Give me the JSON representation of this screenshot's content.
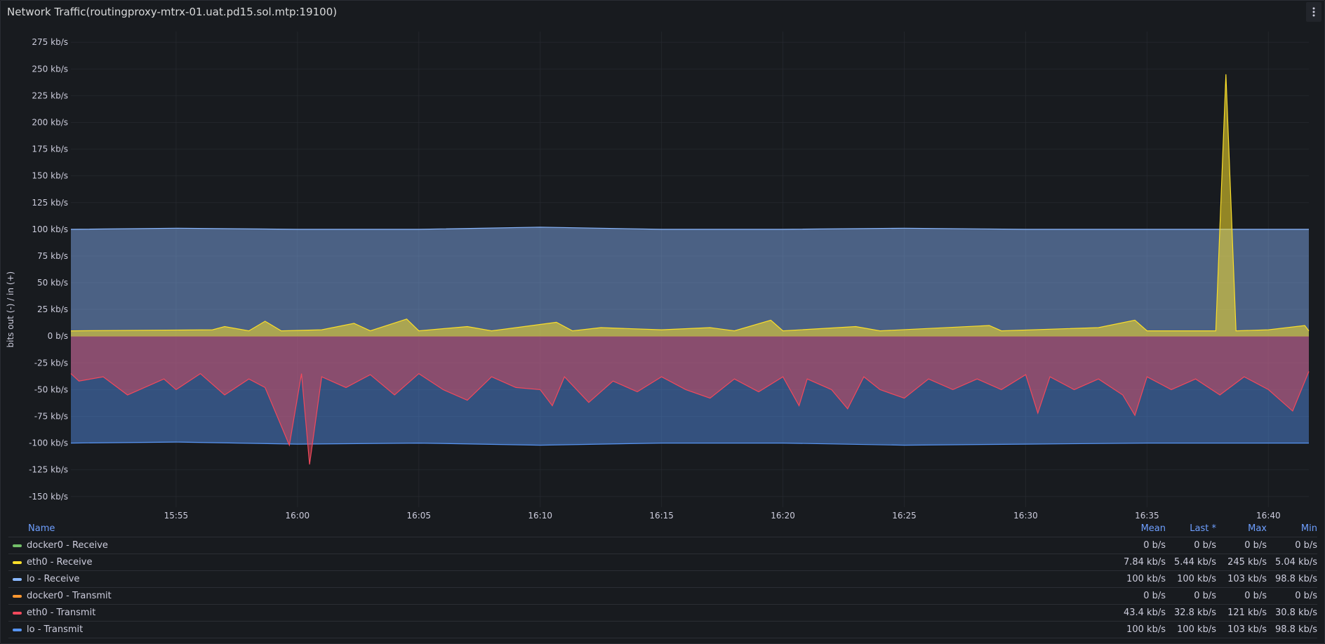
{
  "panel": {
    "title": "Network Traffic(routingproxy-mtrx-01.uat.pd15.sol.mtp:19100)"
  },
  "icons": {
    "menu": "more-vertical-icon"
  },
  "colors": {
    "background": "#181b1f",
    "grid": "#2a2d33",
    "axis_text": "#ccccdc",
    "legend_header": "#6e9fff"
  },
  "legend": {
    "columns": [
      "Name",
      "Mean",
      "Last *",
      "Max",
      "Min"
    ],
    "rows": [
      {
        "name": "docker0 - Receive",
        "color": "#73bf69",
        "mean": "0 b/s",
        "last": "0 b/s",
        "max": "0 b/s",
        "min": "0 b/s"
      },
      {
        "name": "eth0 - Receive",
        "color": "#fade2a",
        "mean": "7.84 kb/s",
        "last": "5.44 kb/s",
        "max": "245 kb/s",
        "min": "5.04 kb/s"
      },
      {
        "name": "lo - Receive",
        "color": "#8ab8ff",
        "mean": "100 kb/s",
        "last": "100 kb/s",
        "max": "103 kb/s",
        "min": "98.8 kb/s"
      },
      {
        "name": "docker0 - Transmit",
        "color": "#ff9830",
        "mean": "0 b/s",
        "last": "0 b/s",
        "max": "0 b/s",
        "min": "0 b/s"
      },
      {
        "name": "eth0 - Transmit",
        "color": "#f2495c",
        "mean": "43.4 kb/s",
        "last": "32.8 kb/s",
        "max": "121 kb/s",
        "min": "30.8 kb/s"
      },
      {
        "name": "lo - Transmit",
        "color": "#5794f2",
        "mean": "100 kb/s",
        "last": "100 kb/s",
        "max": "103 kb/s",
        "min": "98.8 kb/s"
      }
    ]
  },
  "chart_data": {
    "type": "area",
    "ylabel": "bits out (-) / in (+)",
    "y_unit": "kb/s",
    "ylim": [
      -160,
      285
    ],
    "y_ticks": [
      {
        "value": 275,
        "label": "275 kb/s"
      },
      {
        "value": 250,
        "label": "250 kb/s"
      },
      {
        "value": 225,
        "label": "225 kb/s"
      },
      {
        "value": 200,
        "label": "200 kb/s"
      },
      {
        "value": 175,
        "label": "175 kb/s"
      },
      {
        "value": 150,
        "label": "150 kb/s"
      },
      {
        "value": 125,
        "label": "125 kb/s"
      },
      {
        "value": 100,
        "label": "100 kb/s"
      },
      {
        "value": 75,
        "label": "75 kb/s"
      },
      {
        "value": 50,
        "label": "50 kb/s"
      },
      {
        "value": 25,
        "label": "25 kb/s"
      },
      {
        "value": 0,
        "label": "0 b/s"
      },
      {
        "value": -25,
        "label": "-25 kb/s"
      },
      {
        "value": -50,
        "label": "-50 kb/s"
      },
      {
        "value": -75,
        "label": "-75 kb/s"
      },
      {
        "value": -100,
        "label": "-100 kb/s"
      },
      {
        "value": -125,
        "label": "-125 kb/s"
      },
      {
        "value": -150,
        "label": "-150 kb/s"
      }
    ],
    "x_range": [
      "15:50:40",
      "16:41:40"
    ],
    "x_ticks": [
      "15:55",
      "16:00",
      "16:05",
      "16:10",
      "16:15",
      "16:20",
      "16:25",
      "16:30",
      "16:35",
      "16:40"
    ],
    "grid": true,
    "legend_placement": "bottom",
    "series": [
      {
        "name": "lo - Receive",
        "color": "#8ab8ff",
        "points": [
          [
            "15:50:40",
            100
          ],
          [
            "15:55",
            101
          ],
          [
            "16:00",
            100
          ],
          [
            "16:05",
            100
          ],
          [
            "16:10",
            102
          ],
          [
            "16:15",
            100
          ],
          [
            "16:20",
            100
          ],
          [
            "16:25",
            101
          ],
          [
            "16:30",
            100
          ],
          [
            "16:35",
            100
          ],
          [
            "16:40",
            100
          ],
          [
            "16:41:40",
            100
          ]
        ]
      },
      {
        "name": "eth0 - Receive",
        "color": "#fade2a",
        "points": [
          [
            "15:50:40",
            5
          ],
          [
            "15:56:30",
            6
          ],
          [
            "15:57",
            9
          ],
          [
            "15:58",
            5
          ],
          [
            "15:58:40",
            14
          ],
          [
            "15:59:20",
            5
          ],
          [
            "16:01",
            6
          ],
          [
            "16:02:20",
            12
          ],
          [
            "16:03",
            5
          ],
          [
            "16:04:30",
            16
          ],
          [
            "16:05",
            5
          ],
          [
            "16:07",
            9
          ],
          [
            "16:08",
            5
          ],
          [
            "16:10:40",
            13
          ],
          [
            "16:11:20",
            5
          ],
          [
            "16:12:30",
            8
          ],
          [
            "16:15",
            6
          ],
          [
            "16:17",
            8
          ],
          [
            "16:18",
            5
          ],
          [
            "16:19:30",
            15
          ],
          [
            "16:20",
            5
          ],
          [
            "16:23",
            9
          ],
          [
            "16:24",
            5
          ],
          [
            "16:28:30",
            10
          ],
          [
            "16:29",
            5
          ],
          [
            "16:33",
            8
          ],
          [
            "16:34:30",
            15
          ],
          [
            "16:35",
            5
          ],
          [
            "16:37:50",
            5
          ],
          [
            "16:38:15",
            245
          ],
          [
            "16:38:40",
            5
          ],
          [
            "16:40",
            6
          ],
          [
            "16:41:30",
            10
          ],
          [
            "16:41:40",
            5
          ]
        ]
      },
      {
        "name": "eth0 - Transmit",
        "color": "#f2495c",
        "points": [
          [
            "15:50:40",
            -35
          ],
          [
            "15:51",
            -42
          ],
          [
            "15:52",
            -38
          ],
          [
            "15:53",
            -55
          ],
          [
            "15:54:30",
            -40
          ],
          [
            "15:55",
            -50
          ],
          [
            "15:56",
            -35
          ],
          [
            "15:57",
            -55
          ],
          [
            "15:58",
            -40
          ],
          [
            "15:58:40",
            -48
          ],
          [
            "15:59:40",
            -102
          ],
          [
            "16:00:10",
            -35
          ],
          [
            "16:00:30",
            -120
          ],
          [
            "16:01",
            -38
          ],
          [
            "16:02",
            -48
          ],
          [
            "16:03",
            -36
          ],
          [
            "16:04",
            -55
          ],
          [
            "16:05",
            -35
          ],
          [
            "16:06",
            -50
          ],
          [
            "16:07",
            -60
          ],
          [
            "16:08",
            -38
          ],
          [
            "16:09",
            -48
          ],
          [
            "16:10",
            -50
          ],
          [
            "16:10:30",
            -65
          ],
          [
            "16:11",
            -38
          ],
          [
            "16:12",
            -62
          ],
          [
            "16:13",
            -42
          ],
          [
            "16:14",
            -52
          ],
          [
            "16:15",
            -38
          ],
          [
            "16:16",
            -50
          ],
          [
            "16:17",
            -58
          ],
          [
            "16:18",
            -40
          ],
          [
            "16:19",
            -52
          ],
          [
            "16:20",
            -38
          ],
          [
            "16:20:40",
            -65
          ],
          [
            "16:21",
            -40
          ],
          [
            "16:22",
            -50
          ],
          [
            "16:22:40",
            -68
          ],
          [
            "16:23:20",
            -38
          ],
          [
            "16:24",
            -50
          ],
          [
            "16:25",
            -58
          ],
          [
            "16:26",
            -40
          ],
          [
            "16:27",
            -50
          ],
          [
            "16:28",
            -40
          ],
          [
            "16:29",
            -50
          ],
          [
            "16:30",
            -36
          ],
          [
            "16:30:30",
            -72
          ],
          [
            "16:31",
            -38
          ],
          [
            "16:32",
            -50
          ],
          [
            "16:33",
            -40
          ],
          [
            "16:34",
            -55
          ],
          [
            "16:34:30",
            -74
          ],
          [
            "16:35",
            -38
          ],
          [
            "16:36",
            -50
          ],
          [
            "16:37",
            -40
          ],
          [
            "16:38",
            -55
          ],
          [
            "16:39",
            -38
          ],
          [
            "16:40",
            -50
          ],
          [
            "16:41",
            -70
          ],
          [
            "16:41:40",
            -33
          ]
        ]
      },
      {
        "name": "lo - Transmit",
        "color": "#5794f2",
        "points": [
          [
            "15:50:40",
            -100
          ],
          [
            "15:55",
            -99
          ],
          [
            "16:00",
            -101
          ],
          [
            "16:05",
            -100
          ],
          [
            "16:10",
            -102
          ],
          [
            "16:15",
            -100
          ],
          [
            "16:20",
            -100
          ],
          [
            "16:25",
            -102
          ],
          [
            "16:30",
            -101
          ],
          [
            "16:35",
            -100
          ],
          [
            "16:40",
            -100
          ],
          [
            "16:41:40",
            -100
          ]
        ]
      },
      {
        "name": "docker0 - Receive",
        "color": "#73bf69",
        "points": [
          [
            "15:50:40",
            0
          ],
          [
            "16:41:40",
            0
          ]
        ]
      },
      {
        "name": "docker0 - Transmit",
        "color": "#ff9830",
        "points": [
          [
            "15:50:40",
            0
          ],
          [
            "16:41:40",
            0
          ]
        ]
      }
    ]
  }
}
